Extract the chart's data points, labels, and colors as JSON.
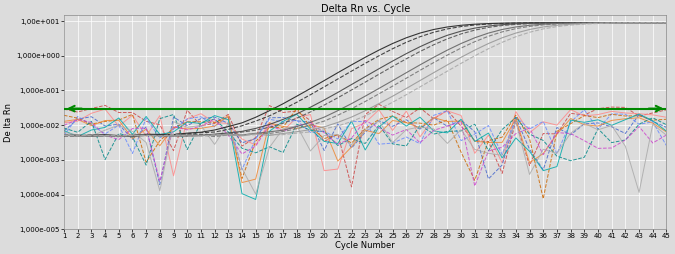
{
  "title": "Delta Rn vs. Cycle",
  "xlabel": "Cycle Number",
  "ylabel": "De lta Rn",
  "threshold": 0.03,
  "threshold_color": "#008800",
  "bg_color": "#dcdcdc",
  "grid_color": "#ffffff",
  "ymin": 1e-05,
  "ymax": 15.0,
  "xmin": 1,
  "xmax": 45,
  "ytick_vals": [
    1e-05,
    0.0001,
    0.001,
    0.01,
    0.1,
    1.0,
    10.0
  ],
  "ytick_labels": [
    "1,000e-005",
    "1,000e-004",
    "1,000e-003",
    "1,000e-002",
    "1,000e-001",
    "1,000e+000",
    "1,00e+001"
  ],
  "amp_cts": [
    27.0,
    27.8,
    29.5,
    30.2,
    32.0,
    32.7,
    34.0,
    34.8
  ],
  "amp_colors": [
    "#222222",
    "#333333",
    "#444444",
    "#555555",
    "#666666",
    "#777777",
    "#999999",
    "#aaaaaa"
  ],
  "amp_styles": [
    "-",
    "--",
    "-",
    "--",
    "-",
    "--",
    "-",
    "--"
  ],
  "amp_amplitude": 9.0,
  "amp_steepness": 0.55,
  "neg_specs": [
    {
      "color": "#cc4444",
      "style": "--",
      "base": 0.025,
      "noise": 0.008
    },
    {
      "color": "#ff8888",
      "style": "-",
      "base": 0.018,
      "noise": 0.006
    },
    {
      "color": "#4466cc",
      "style": "--",
      "base": 0.012,
      "noise": 0.005
    },
    {
      "color": "#6688ff",
      "style": "--",
      "base": 0.01,
      "noise": 0.007
    },
    {
      "color": "#cc6600",
      "style": "--",
      "base": 0.015,
      "noise": 0.005
    },
    {
      "color": "#ee8833",
      "style": "-",
      "base": 0.012,
      "noise": 0.004
    },
    {
      "color": "#008888",
      "style": "--",
      "base": 0.009,
      "noise": 0.006
    },
    {
      "color": "#00aaaa",
      "style": "-",
      "base": 0.01,
      "noise": 0.005
    },
    {
      "color": "#cc44cc",
      "style": "--",
      "base": 0.008,
      "noise": 0.004
    },
    {
      "color": "#aaaaaa",
      "style": "-",
      "base": 0.007,
      "noise": 0.003
    }
  ],
  "title_fontsize": 7,
  "label_fontsize": 6,
  "tick_fontsize": 5,
  "linewidth_amp": 0.8,
  "linewidth_neg": 0.7,
  "linewidth_thresh": 1.5
}
